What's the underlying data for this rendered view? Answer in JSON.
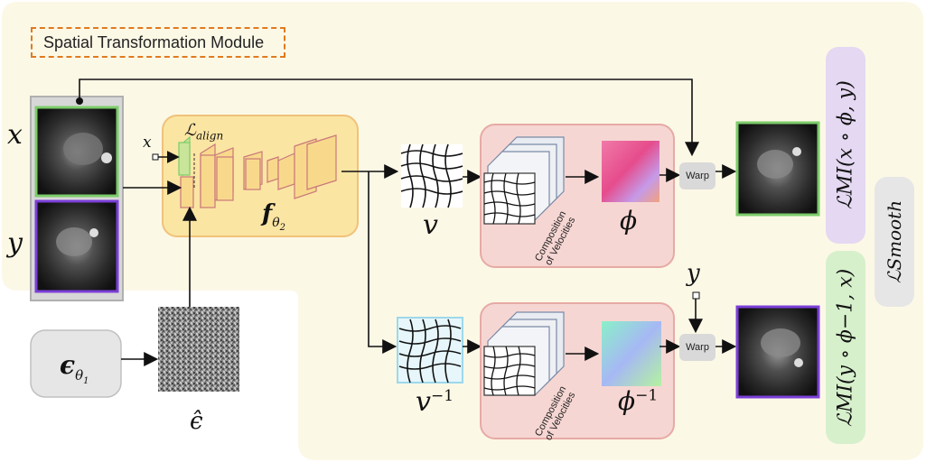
{
  "title": "Spatial Transformation Module",
  "inputs": {
    "x": "x",
    "y": "y"
  },
  "align_loss": "ℒ",
  "align_loss_sub": "align",
  "x_small": "x",
  "network": {
    "symbol": "f",
    "sub": "θ",
    "sub2": "2"
  },
  "velocity": {
    "v": "v",
    "v_inv": "v",
    "v_inv_sup": "−1"
  },
  "composition_label_1": "Composition",
  "composition_label_2": "of Velocities",
  "phi": {
    "phi": "ϕ",
    "phi_inv": "ϕ",
    "phi_inv_sup": "−1"
  },
  "warp_label": "Warp",
  "y_small": "y",
  "noise_model": {
    "symbol": "ϵ",
    "sub": "θ",
    "sub2": "1"
  },
  "noise_label": "ϵ̂",
  "losses": {
    "mi_forward": "ℒMI(x ∘ ϕ, y)",
    "mi_inverse": "ℒMI(y ∘ ϕ−1, x)",
    "smooth": "ℒSmooth"
  },
  "colors": {
    "module_bg": "#fcf8e6",
    "network_bg": "#fbe5a3",
    "composition_bg": "#f6d6d3",
    "green_border": "#7ccc6a",
    "purple_border": "#7b3fd8",
    "title_border": "#e07a1f",
    "mi_forward_bg": "#e4d8f2",
    "mi_inverse_bg": "#d7f0cc",
    "smooth_bg": "#e6e6e6"
  }
}
